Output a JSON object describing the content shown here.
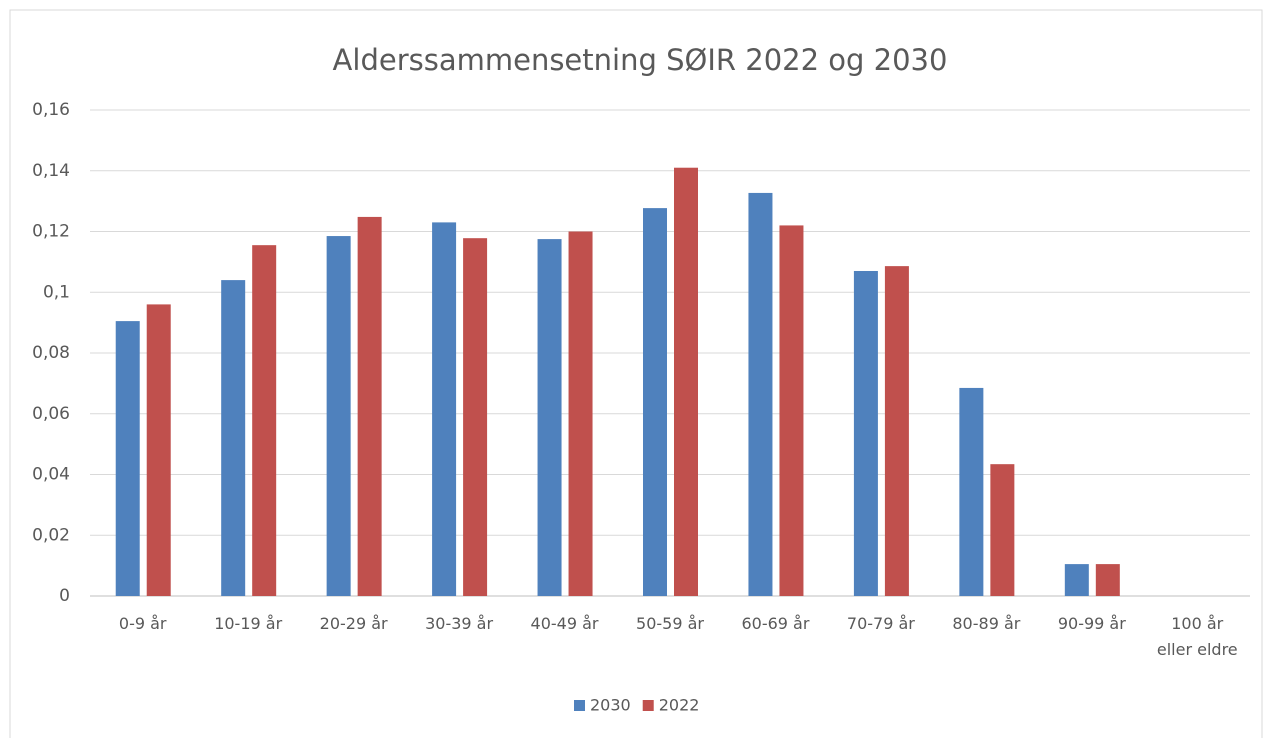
{
  "chart_data": {
    "type": "bar",
    "title": "Alderssammensetning SØIR 2022 og 2030",
    "categories": [
      "0-9 år",
      "10-19 år",
      "20-29 år",
      "30-39 år",
      "40-49 år",
      "50-59 år",
      "60-69 år",
      "70-79 år",
      "80-89 år",
      "90-99 år",
      "100 år\neller eldre"
    ],
    "series": [
      {
        "name": "2030",
        "color": "#4f81bd",
        "values": [
          0.0905,
          0.104,
          0.1185,
          0.123,
          0.1175,
          0.1277,
          0.1327,
          0.107,
          0.0685,
          0.0105,
          0
        ]
      },
      {
        "name": "2022",
        "color": "#c0504d",
        "values": [
          0.096,
          0.1155,
          0.1248,
          0.1178,
          0.12,
          0.141,
          0.122,
          0.1086,
          0.0434,
          0.0105,
          0
        ]
      }
    ],
    "ylim": [
      0,
      0.16
    ],
    "yticks": [
      0,
      {
        "value": 0.02,
        "label": "0,02"
      },
      {
        "value": 0.04,
        "label": "0,04"
      },
      {
        "value": 0.06,
        "label": "0,06"
      },
      {
        "value": 0.08,
        "label": "0,08"
      },
      {
        "value": 0.1,
        "label": "0,1"
      },
      {
        "value": 0.12,
        "label": "0,12"
      },
      {
        "value": 0.14,
        "label": "0,14"
      },
      {
        "value": 0.16,
        "label": "0,16"
      }
    ],
    "grid": true,
    "legend": "bottom"
  }
}
